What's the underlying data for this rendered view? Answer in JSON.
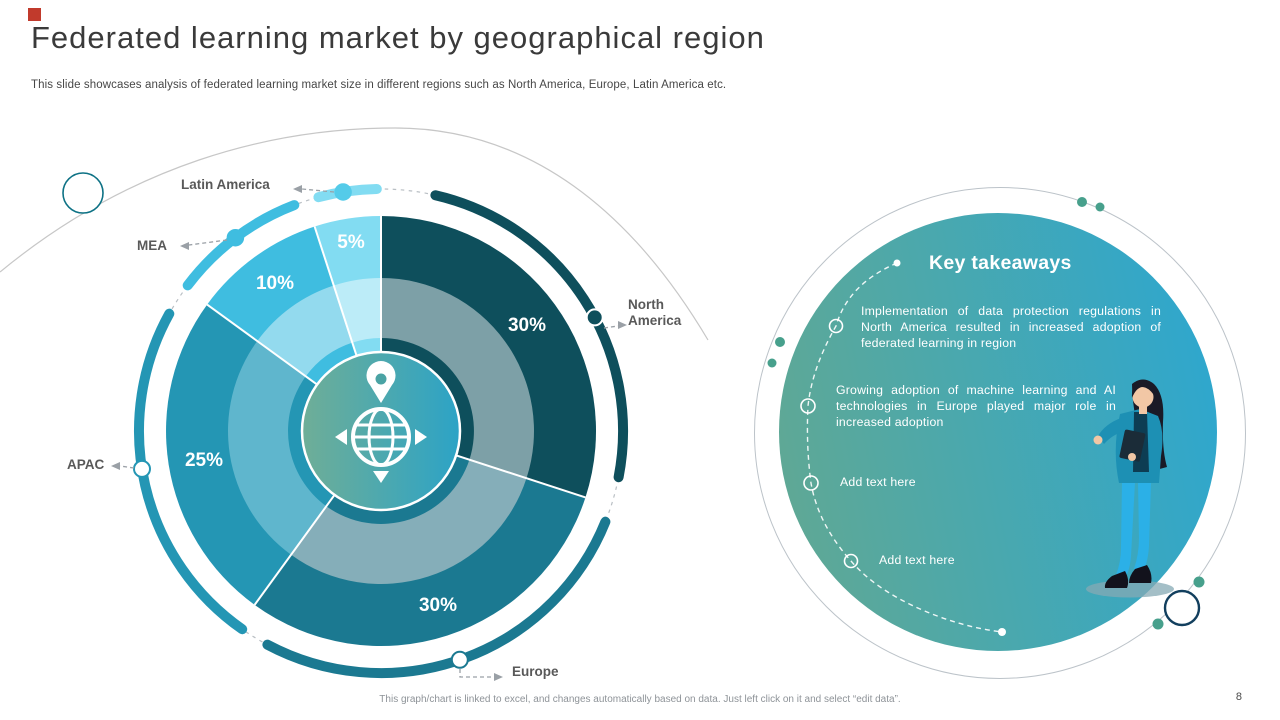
{
  "slide": {
    "title": "Federated learning market by geographical region",
    "subtitle": "This slide showcases analysis of federated learning market size in different regions such as North America, Europe, Latin America etc.",
    "footer_note": "This graph/chart is linked to excel, and changes automatically based on data. Just left click on it and select “edit data”.",
    "page_number": "8",
    "accent_color": "#c13a2c"
  },
  "chart_data": {
    "type": "pie",
    "title": "Federated learning market share by geographical region",
    "unit": "%",
    "start_angle_deg": 0,
    "direction": "clockwise",
    "center_icon": "globe-location-icon",
    "legend_position": "callout-labels",
    "segments": [
      {
        "label": "North America",
        "value": 30,
        "pct_label": "30%",
        "color": "#0e4f5c",
        "ring_color": "#7da0a7"
      },
      {
        "label": "Europe",
        "value": 30,
        "pct_label": "30%",
        "color": "#1b7991",
        "ring_color": "#85aeb9"
      },
      {
        "label": "APAC",
        "value": 25,
        "pct_label": "25%",
        "color": "#2496b4",
        "ring_color": "#5fb6cd"
      },
      {
        "label": "MEA",
        "value": 10,
        "pct_label": "10%",
        "color": "#3fbde0",
        "ring_color": "#93daee"
      },
      {
        "label": "Latin America",
        "value": 5,
        "pct_label": "5%",
        "color": "#82dcf2",
        "ring_color": "#bcecf8"
      }
    ]
  },
  "takeaways": {
    "title": "Key takeaways",
    "items": [
      "Implementation of data protection regulations in North America resulted in increased adoption of federated learning in region",
      "Growing adoption of machine learning and AI technologies in Europe played major role in increased adoption",
      "Add text here",
      "Add text here"
    ]
  }
}
